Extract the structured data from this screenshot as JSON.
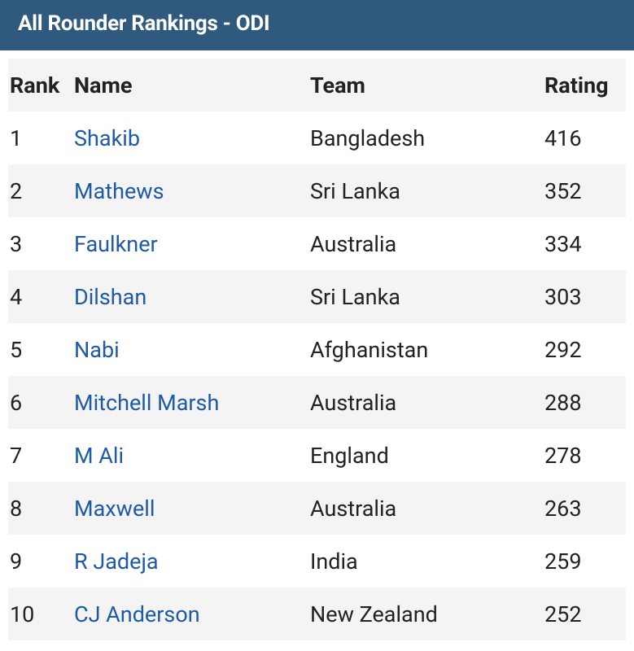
{
  "header": {
    "title": "All Rounder Rankings - ODI"
  },
  "table": {
    "columns": [
      "Rank",
      "Name",
      "Team",
      "Rating"
    ],
    "rows": [
      [
        1,
        "Shakib",
        "Bangladesh",
        416
      ],
      [
        2,
        "Mathews",
        "Sri Lanka",
        352
      ],
      [
        3,
        "Faulkner",
        "Australia",
        334
      ],
      [
        4,
        "Dilshan",
        "Sri Lanka",
        303
      ],
      [
        5,
        "Nabi",
        "Afghanistan",
        292
      ],
      [
        6,
        "Mitchell Marsh",
        "Australia",
        288
      ],
      [
        7,
        "M Ali",
        "England",
        278
      ],
      [
        8,
        "Maxwell",
        "Australia",
        263
      ],
      [
        9,
        "R Jadeja",
        "India",
        259
      ],
      [
        10,
        "CJ Anderson",
        "New Zealand",
        252
      ]
    ]
  }
}
